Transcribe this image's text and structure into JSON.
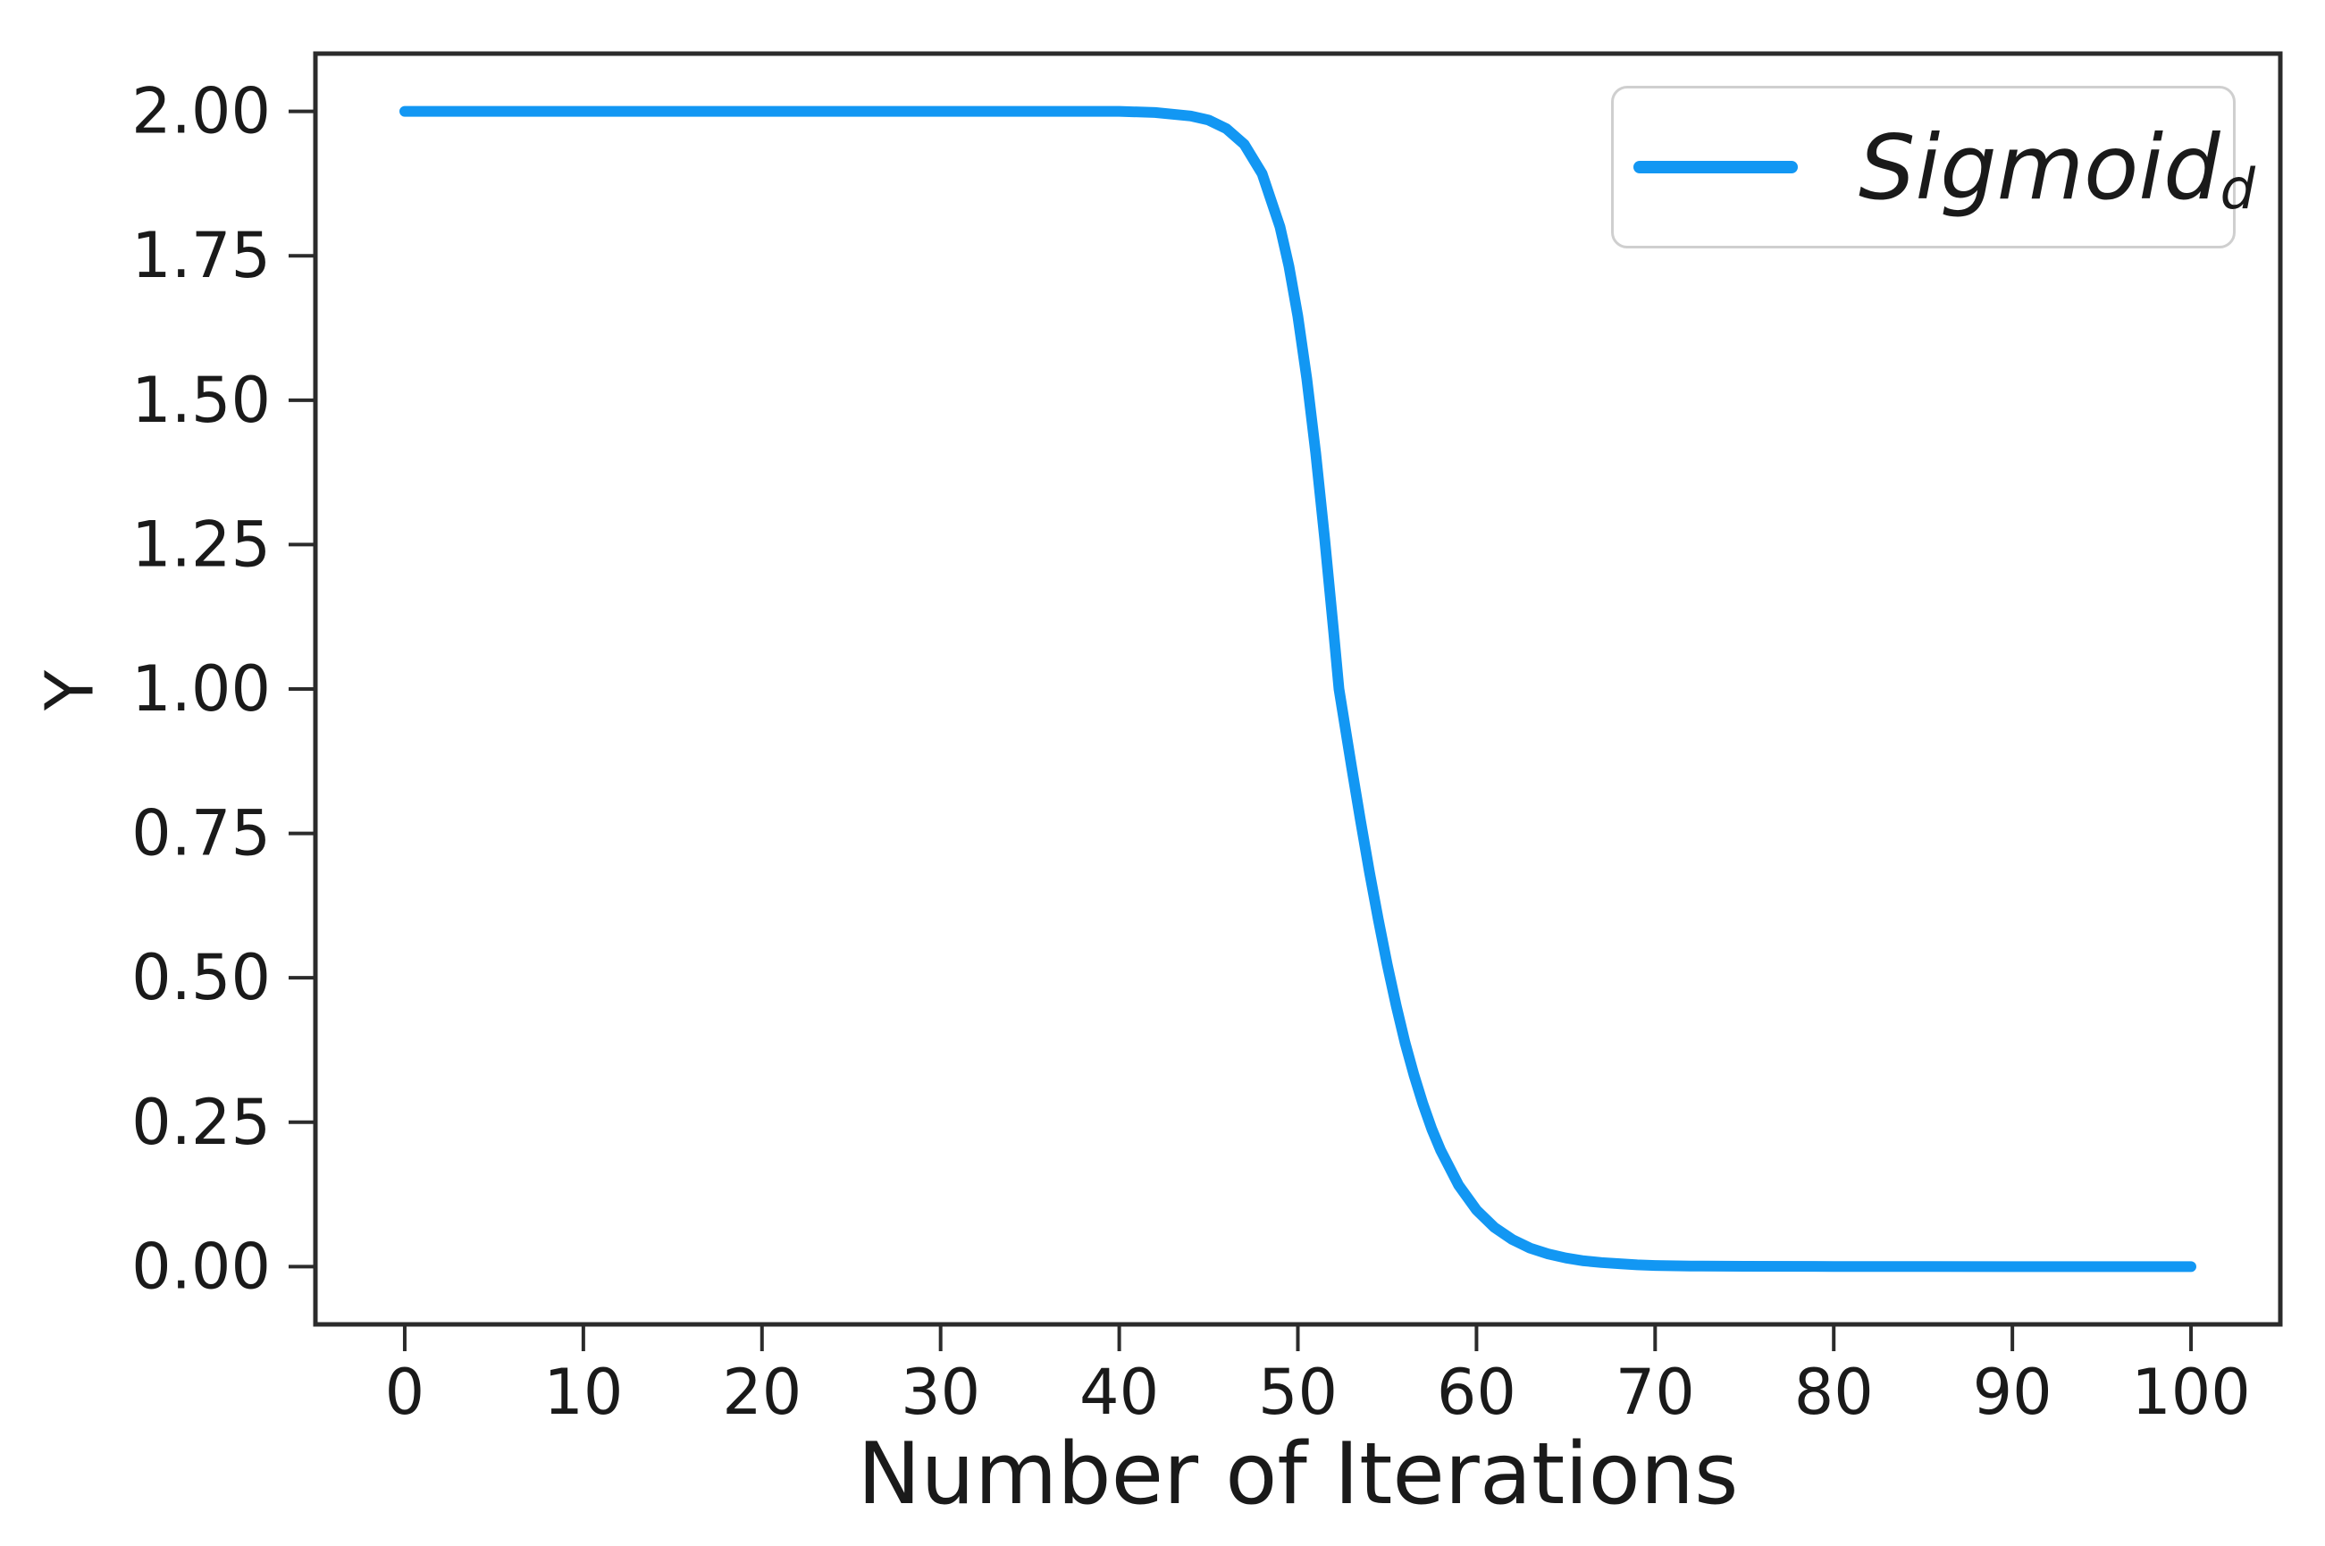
{
  "axes": {
    "xlabel": "Number of Iterations",
    "ylabel": "Y"
  },
  "legend": {
    "label_main": "Sigmoid",
    "label_sub": "d"
  },
  "colors": {
    "line": "#1297f3",
    "spine": "#2b2b2b",
    "tick_text": "#1a1a1a",
    "legend_border": "#cfcfcf",
    "background": "#ffffff"
  },
  "chart_data": {
    "type": "line",
    "title": "",
    "xlabel": "Number of Iterations",
    "ylabel": "Y",
    "xlim": [
      -5,
      105
    ],
    "ylim": [
      -0.1,
      2.1
    ],
    "x_ticks": [
      0,
      10,
      20,
      30,
      40,
      50,
      60,
      70,
      80,
      90,
      100
    ],
    "x_tick_labels": [
      "0",
      "10",
      "20",
      "30",
      "40",
      "50",
      "60",
      "70",
      "80",
      "90",
      "100"
    ],
    "y_ticks": [
      0,
      0.25,
      0.5,
      0.75,
      1.0,
      1.25,
      1.5,
      1.75,
      2.0
    ],
    "y_tick_labels": [
      "0.00",
      "0.25",
      "0.50",
      "0.75",
      "1.00",
      "1.25",
      "1.50",
      "1.75",
      "2.00"
    ],
    "grid": false,
    "legend_position": "upper right",
    "series": [
      {
        "name": "Sigmoid_d",
        "color": "#1297f3",
        "line_width": 12,
        "points": [
          [
            0,
            2.0
          ],
          [
            5,
            2.0
          ],
          [
            10,
            2.0
          ],
          [
            15,
            2.0
          ],
          [
            20,
            2.0
          ],
          [
            25,
            2.0
          ],
          [
            30,
            2.0
          ],
          [
            35,
            2.0
          ],
          [
            40,
            2.0
          ],
          [
            42,
            1.998
          ],
          [
            44,
            1.992
          ],
          [
            45,
            1.985
          ],
          [
            46,
            1.97
          ],
          [
            47,
            1.943
          ],
          [
            48,
            1.892
          ],
          [
            49,
            1.8
          ],
          [
            49.5,
            1.732
          ],
          [
            50,
            1.645
          ],
          [
            50.5,
            1.537
          ],
          [
            51,
            1.408
          ],
          [
            51.5,
            1.26
          ],
          [
            52,
            1.1
          ],
          [
            52.3,
            1.0
          ],
          [
            53,
            0.866
          ],
          [
            53.5,
            0.773
          ],
          [
            54,
            0.684
          ],
          [
            54.5,
            0.601
          ],
          [
            55,
            0.523
          ],
          [
            55.5,
            0.452
          ],
          [
            56,
            0.388
          ],
          [
            56.5,
            0.332
          ],
          [
            57,
            0.282
          ],
          [
            57.5,
            0.238
          ],
          [
            58,
            0.201
          ],
          [
            59,
            0.141
          ],
          [
            60,
            0.098
          ],
          [
            61,
            0.068
          ],
          [
            62,
            0.047
          ],
          [
            63,
            0.032
          ],
          [
            64,
            0.022
          ],
          [
            65,
            0.015
          ],
          [
            66,
            0.01
          ],
          [
            67,
            0.007
          ],
          [
            68,
            0.005
          ],
          [
            69,
            0.003
          ],
          [
            70,
            0.002
          ],
          [
            72,
            0.001
          ],
          [
            75,
            0.0005
          ],
          [
            80,
            0.0002
          ],
          [
            85,
            0.0001
          ],
          [
            90,
            0.0
          ],
          [
            95,
            0.0
          ],
          [
            100,
            0.0
          ]
        ]
      }
    ]
  }
}
